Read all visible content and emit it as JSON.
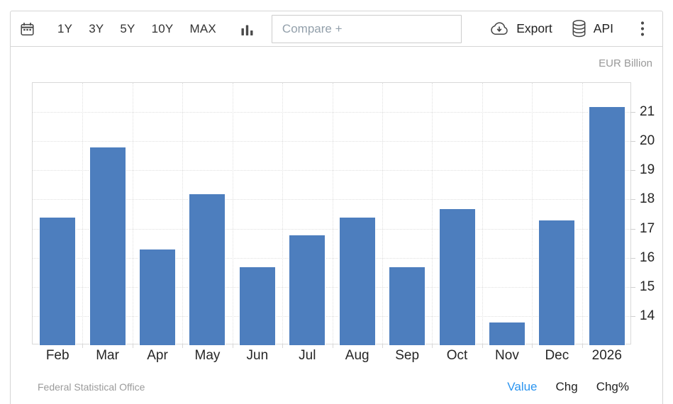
{
  "toolbar": {
    "calendar_icon": "calendar-icon",
    "ranges": [
      "1Y",
      "3Y",
      "5Y",
      "10Y",
      "MAX"
    ],
    "chart_type_icon": "bar-chart-icon",
    "compare_placeholder": "Compare +",
    "export_label": "Export",
    "api_label": "API",
    "menu_icon": "kebab-menu-icon"
  },
  "chart": {
    "unit_label": "EUR Billion",
    "source": "Federal Statistical Office",
    "modes": [
      {
        "label": "Value",
        "active": true
      },
      {
        "label": "Chg",
        "active": false
      },
      {
        "label": "Chg%",
        "active": false
      }
    ]
  },
  "chart_data": {
    "type": "bar",
    "title": "",
    "xlabel": "",
    "ylabel": "EUR Billion",
    "categories": [
      "Feb",
      "Mar",
      "Apr",
      "May",
      "Jun",
      "Jul",
      "Aug",
      "Sep",
      "Oct",
      "Nov",
      "Dec",
      "2026"
    ],
    "values": [
      17.4,
      19.8,
      16.3,
      18.2,
      15.7,
      16.8,
      17.4,
      15.7,
      17.7,
      13.8,
      17.3,
      21.2
    ],
    "ylim": [
      13,
      22
    ],
    "yticks": [
      14,
      15,
      16,
      17,
      18,
      19,
      20,
      21
    ],
    "bar_color": "#4d7ebe",
    "grid": true,
    "legend": "none"
  },
  "colors": {
    "bar": "#4d7ebe",
    "active_link": "#2b95f0",
    "muted_text": "#9b9b9b",
    "toolbar_text": "#333333",
    "border": "#d5d5d5"
  }
}
